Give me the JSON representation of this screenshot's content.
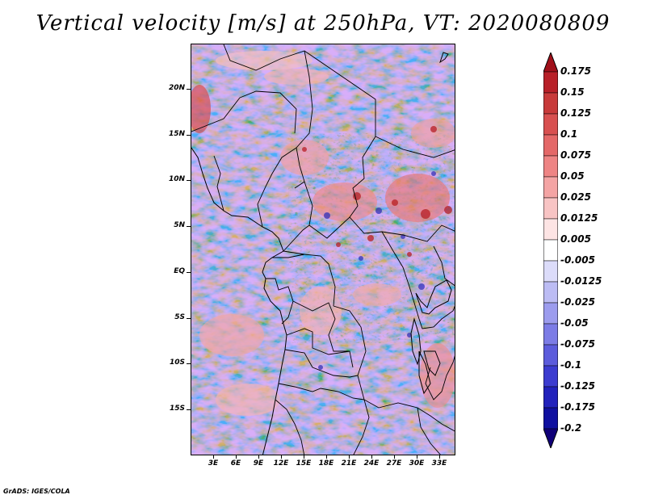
{
  "title": "Vertical velocity [m/s] at 250hPa, VT: 2020080809",
  "credit": "GrADS: IGES/COLA",
  "map": {
    "lon_range": [
      0,
      35
    ],
    "lat_range": [
      -20,
      25
    ],
    "lat_labels": [
      "20N",
      "15N",
      "10N",
      "5N",
      "EQ",
      "5S",
      "10S",
      "15S"
    ],
    "lat_values": [
      20,
      15,
      10,
      5,
      0,
      -5,
      -10,
      -15
    ],
    "lon_labels": [
      "3E",
      "6E",
      "9E",
      "12E",
      "15E",
      "18E",
      "21E",
      "24E",
      "27E",
      "30E",
      "33E"
    ],
    "lon_values": [
      3,
      6,
      9,
      12,
      15,
      18,
      21,
      24,
      27,
      30,
      33
    ]
  },
  "colorbar": {
    "labels": [
      "0.175",
      "0.15",
      "0.125",
      "0.1",
      "0.075",
      "0.05",
      "0.025",
      "0.0125",
      "0.005",
      "-0.005",
      "-0.0125",
      "-0.025",
      "-0.05",
      "-0.075",
      "-0.1",
      "-0.125",
      "-0.175",
      "-0.2"
    ],
    "colors": [
      "#a0101a",
      "#b82028",
      "#c83a3a",
      "#d85050",
      "#e46868",
      "#ee8484",
      "#f4a4a4",
      "#f8c4c4",
      "#fde4e4",
      "#ffffff",
      "#dcdcfa",
      "#bcbcf4",
      "#9c9cee",
      "#7c7ce6",
      "#5c5cdc",
      "#3c3cd0",
      "#2222bc",
      "#1010a0",
      "#100078"
    ]
  }
}
